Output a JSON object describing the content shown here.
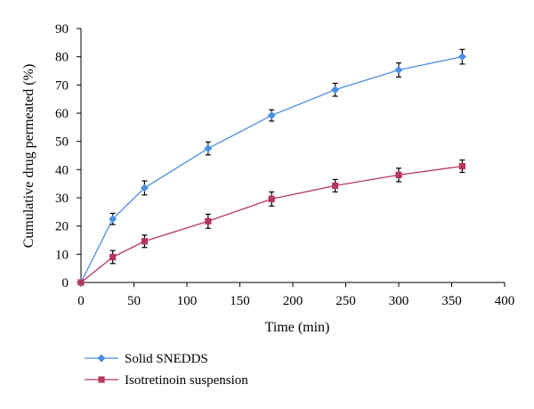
{
  "chart_data": {
    "type": "line",
    "title": "",
    "xlabel": "Time (min)",
    "ylabel": "Cumulative drug permeated (%)",
    "xlim": [
      0,
      400
    ],
    "ylim": [
      0,
      90
    ],
    "xticks": [
      0,
      50,
      100,
      150,
      200,
      250,
      300,
      350,
      400
    ],
    "yticks": [
      0,
      10,
      20,
      30,
      40,
      50,
      60,
      70,
      80,
      90
    ],
    "grid": false,
    "legend_position": "bottom-left",
    "series": [
      {
        "name": "Solid SNEDDS",
        "color": "#4a8fe0",
        "marker": "diamond",
        "x": [
          0,
          30,
          60,
          120,
          180,
          240,
          300,
          360
        ],
        "y": [
          0,
          22.5,
          33.5,
          47.5,
          59.2,
          68.3,
          75.3,
          80.0
        ],
        "err": [
          0,
          2.0,
          2.5,
          2.3,
          2.0,
          2.3,
          2.5,
          2.6
        ]
      },
      {
        "name": "Isotretinoin suspension",
        "color": "#b5375b",
        "marker": "square",
        "x": [
          0,
          30,
          60,
          120,
          180,
          240,
          300,
          360
        ],
        "y": [
          0,
          9.0,
          14.6,
          21.7,
          29.6,
          34.3,
          38.1,
          41.2
        ],
        "err": [
          0,
          2.3,
          2.2,
          2.5,
          2.5,
          2.2,
          2.4,
          2.2
        ]
      }
    ]
  }
}
